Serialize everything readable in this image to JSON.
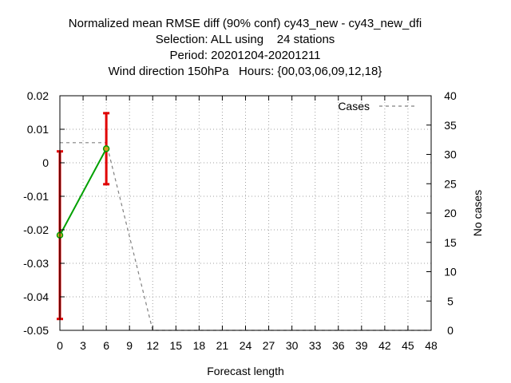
{
  "chart_data": {
    "type": "line",
    "title": [
      "Normalized mean RMSE diff (90% conf) cy43_new - cy43_new_dfi",
      "Selection: ALL using    24 stations",
      "Period: 20201204-20201211",
      "Wind direction 150hPa   Hours: {00,03,06,09,12,18}"
    ],
    "xlabel": "Forecast length",
    "ylabel": "",
    "y2label": "No cases",
    "xlim": [
      0,
      48
    ],
    "ylim": [
      -0.05,
      0.02
    ],
    "y2lim": [
      0,
      40
    ],
    "xticks": [
      0,
      3,
      6,
      9,
      12,
      15,
      18,
      21,
      24,
      27,
      30,
      33,
      36,
      39,
      42,
      45,
      48
    ],
    "xtick_labels": [
      "0",
      "3",
      "6",
      "9",
      "12",
      "15",
      "18",
      "21",
      "24",
      "27",
      "30",
      "33",
      "36",
      "39",
      "42",
      "45",
      "48"
    ],
    "yticks": [
      -0.05,
      -0.04,
      -0.03,
      -0.02,
      -0.01,
      0,
      0.01,
      0.02
    ],
    "ytick_labels": [
      "-0.05",
      "-0.04",
      "-0.03",
      "-0.02",
      "-0.01",
      "0",
      "0.01",
      "0.02"
    ],
    "y2ticks": [
      0,
      5,
      10,
      15,
      20,
      25,
      30,
      35,
      40
    ],
    "y2tick_labels": [
      "0",
      "5",
      "10",
      "15",
      "20",
      "25",
      "30",
      "35",
      "40"
    ],
    "grid": true,
    "legend": {
      "placement": "top-right",
      "entries": [
        "Cases"
      ]
    },
    "series": [
      {
        "color": "#00a000",
        "x": [
          0,
          6
        ],
        "y": [
          -0.0216,
          0.0042
        ],
        "err_low": [
          -0.0466,
          -0.0064
        ],
        "err_high": [
          0.0034,
          0.0148
        ],
        "err_color": "#e00000"
      },
      {
        "name": "Cases",
        "axis": "y2",
        "color": "#808080",
        "dash": "dashed",
        "x": [
          0,
          6,
          12,
          48
        ],
        "y": [
          32,
          32,
          0,
          0
        ]
      }
    ]
  }
}
